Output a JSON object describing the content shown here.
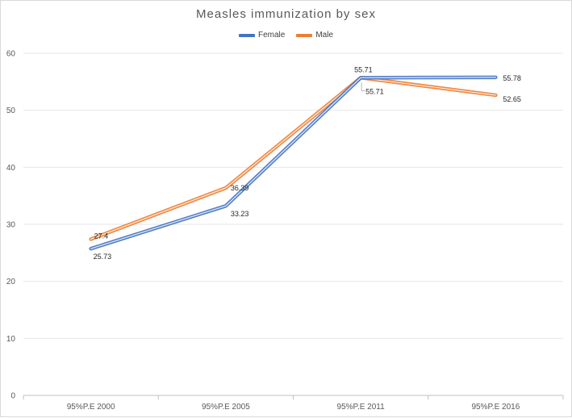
{
  "chart_data": {
    "type": "line",
    "title": "Measles immunization by sex",
    "categories": [
      "95%P.E 2000",
      "95%P.E 2005",
      "95%P.E 2011",
      "95%P.E 2016"
    ],
    "series": [
      {
        "name": "Female",
        "color": "#4472c4",
        "values": [
          25.73,
          33.23,
          55.71,
          55.78
        ],
        "labels": [
          "25.73",
          "33.23",
          "55.71",
          "55.78"
        ]
      },
      {
        "name": "Male",
        "color": "#ed7d31",
        "values": [
          27.4,
          36.39,
          55.71,
          52.65
        ],
        "labels": [
          "27.4",
          "36.39",
          "55.71",
          "52.65"
        ]
      }
    ],
    "yticks": [
      "0",
      "10",
      "20",
      "30",
      "40",
      "50",
      "60"
    ],
    "ylim": [
      0,
      60
    ],
    "grid": true,
    "legend": "top-center"
  }
}
